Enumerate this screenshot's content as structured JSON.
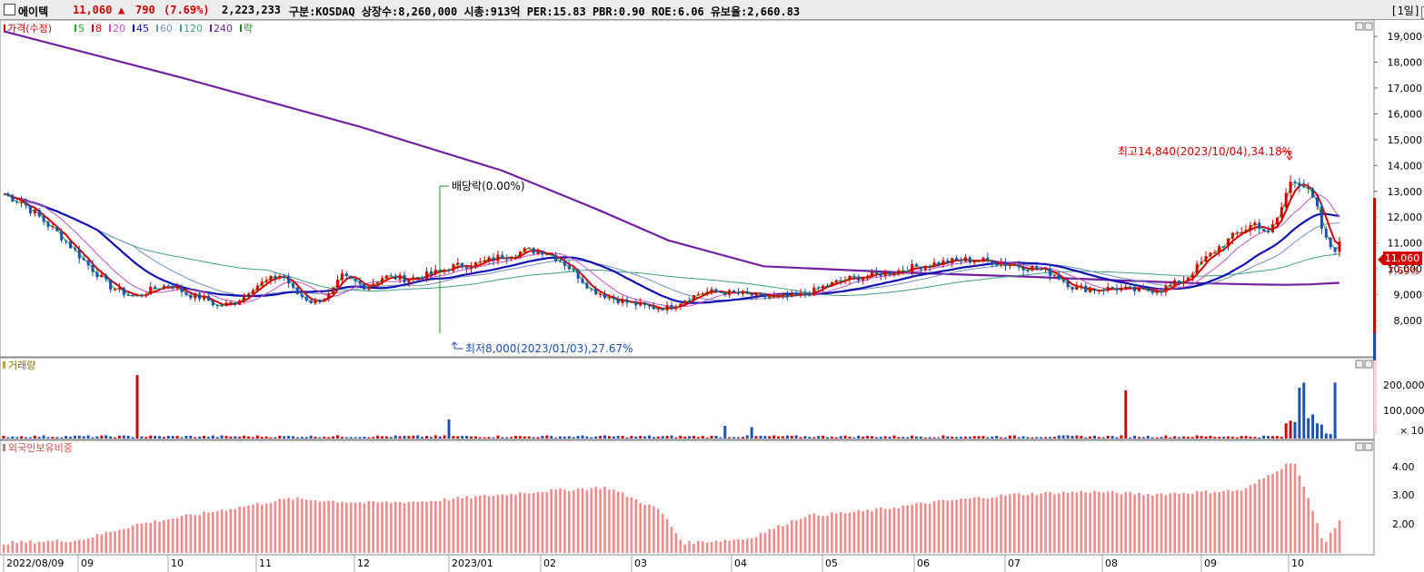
{
  "header": {
    "name": "에이텍",
    "price": "11,060",
    "change_arrow": "▲",
    "change": "790",
    "change_pct": "(7.69%)",
    "volume": "2,223,233",
    "info": "구분:KOSDAQ 상장수:8,260,000 시총:913억 PER:15.83 PBR:0.90 ROE:6.06 유보율:2,660.83",
    "period": "[1일]"
  },
  "price_panel": {
    "legend": [
      {
        "label": "가격(수정)",
        "color": "#d40000"
      },
      {
        "label": "5",
        "color": "#20b020"
      },
      {
        "label": "8",
        "color": "#d40000"
      },
      {
        "label": "20",
        "color": "#c050c0"
      },
      {
        "label": "45",
        "color": "#1010b0"
      },
      {
        "label": "60",
        "color": "#7090c0"
      },
      {
        "label": "120",
        "color": "#40a080"
      },
      {
        "label": "240",
        "color": "#7020a0"
      },
      {
        "label": "락",
        "color": "#208020"
      }
    ],
    "y_ticks": [
      "19,000",
      "18,000",
      "17,000",
      "16,000",
      "15,000",
      "14,000",
      "13,000",
      "12,000",
      "11,000",
      "10,000",
      "9,000",
      "8,000"
    ],
    "current_price": "11,060",
    "current_pct": "7.69%",
    "high_annotation": "최고14,840(2023/10/04),34.18%",
    "low_annotation": "최저8,000(2023/01/03),27.67%",
    "dividend_annotation": "배당락(0.00%)"
  },
  "volume_panel": {
    "label": "거래량",
    "y_ticks": [
      "200,000",
      "100,000"
    ],
    "unit": "× 10"
  },
  "foreign_panel": {
    "label": "외국인보유비중",
    "y_ticks": [
      "4.00",
      "3.00",
      "2.00"
    ]
  },
  "x_axis": {
    "labels": [
      "2022/08/09",
      "09",
      "10",
      "11",
      "12",
      "2023/01",
      "02",
      "03",
      "04",
      "05",
      "06",
      "07",
      "08",
      "09",
      "10"
    ]
  },
  "colors": {
    "up": "#d40000",
    "down": "#1a4fb4",
    "ma240": "#7020a0",
    "ma45": "#1010b0",
    "foreign_bar": "#ee8c8c"
  },
  "chart_data": [
    {
      "type": "line",
      "title": "",
      "x_labels": [
        "2022/08/09",
        "09",
        "10",
        "11",
        "12",
        "2023/01",
        "02",
        "03",
        "04",
        "05",
        "06",
        "07",
        "08",
        "09",
        "10"
      ],
      "ylim": [
        7500,
        19800
      ],
      "series": [
        {
          "name": "가격(수정)",
          "values": [
            13000,
            12200,
            10900,
            9800,
            8800,
            9200,
            9300,
            8700,
            9500,
            9300,
            9100,
            8900,
            9000,
            9800,
            10300,
            9600,
            9200,
            9200,
            11000,
            13500,
            11060
          ]
        },
        {
          "name": "240",
          "values": [
            19200,
            17400,
            15500,
            13800,
            12300,
            11100,
            10100,
            9850,
            9700,
            9550,
            9450,
            9400,
            9380,
            9380,
            9400,
            9420,
            9460
          ]
        }
      ],
      "annotations": [
        "최고14,840(2023/10/04),34.18%",
        "최저8,000(2023/01/03),27.67%",
        "배당락(0.00%)"
      ]
    },
    {
      "type": "bar",
      "title": "거래량",
      "ylim": [
        0,
        260000
      ],
      "y_ticks": [
        100000,
        200000
      ],
      "unit": "× 10"
    },
    {
      "type": "bar",
      "title": "외국인보유비중",
      "ylim": [
        1.0,
        4.5
      ],
      "values": [
        1.4,
        1.5,
        2.0,
        2.8,
        2.6,
        2.7,
        3.1,
        3.3,
        2.5,
        1.3,
        1.5,
        2.3,
        2.2,
        2.4,
        2.7,
        3.0,
        3.1,
        3.0,
        3.0,
        3.3,
        4.2,
        2.1
      ]
    }
  ]
}
